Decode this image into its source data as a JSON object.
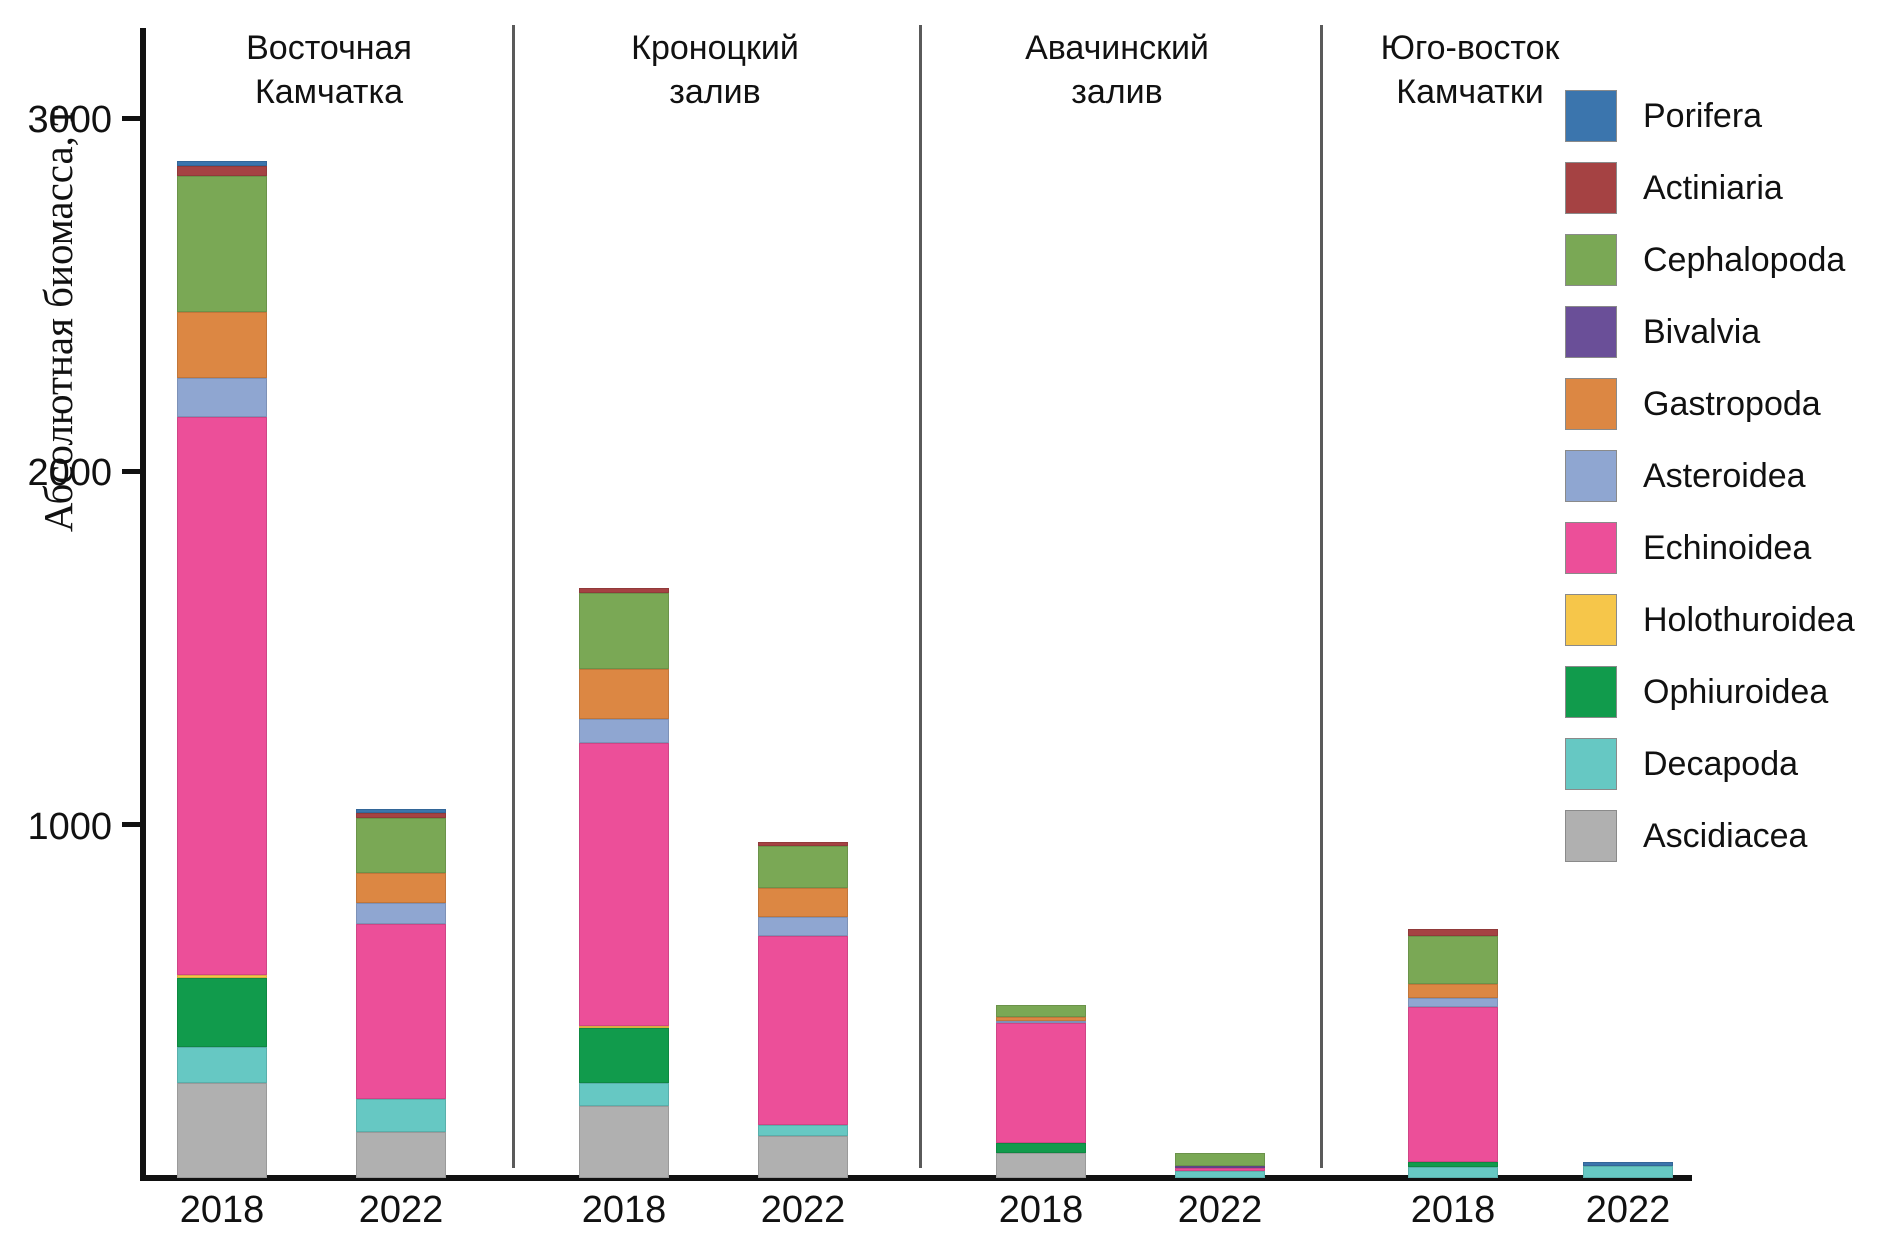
{
  "chart_data": {
    "type": "bar",
    "stacked": true,
    "title": "",
    "ylabel": "Абсолютная биомасса, т",
    "xlabel": "",
    "ylim": [
      0,
      3250
    ],
    "yticks": [
      "1000",
      "2000",
      "3000"
    ],
    "ytick_values": [
      1000,
      2000,
      3000
    ],
    "grid": false,
    "legend_position": "right",
    "legend": [
      {
        "name": "Porifera",
        "color": "#3b75ad"
      },
      {
        "name": "Actiniaria",
        "color": "#a54243"
      },
      {
        "name": "Cephalopoda",
        "color": "#7aa855"
      },
      {
        "name": "Bivalvia",
        "color": "#6a4f98"
      },
      {
        "name": "Gastropoda",
        "color": "#dc8743"
      },
      {
        "name": "Asteroidea",
        "color": "#8fa6d1"
      },
      {
        "name": "Echinoidea",
        "color": "#ec4f99"
      },
      {
        "name": "Holothuroidea",
        "color": "#f6c64a"
      },
      {
        "name": "Ophiuroidea",
        "color": "#119b4c"
      },
      {
        "name": "Decapoda",
        "color": "#66c8c3"
      },
      {
        "name": "Ascidiacea",
        "color": "#b0b0b0"
      }
    ],
    "stack_order_bottom_to_top": [
      "Ascidiacea",
      "Decapoda",
      "Ophiuroidea",
      "Holothuroidea",
      "Echinoidea",
      "Asteroidea",
      "Gastropoda",
      "Bivalvia",
      "Cephalopoda",
      "Actiniaria",
      "Porifera"
    ],
    "groups": [
      {
        "label": "Восточная\nКамчатка",
        "bars": [
          {
            "x_label": "2018",
            "total": 2880,
            "values": {
              "Ascidiacea": 270,
              "Decapoda": 100,
              "Ophiuroidea": 195,
              "Holothuroidea": 10,
              "Echinoidea": 1580,
              "Asteroidea": 110,
              "Gastropoda": 185,
              "Bivalvia": 0,
              "Cephalopoda": 385,
              "Actiniaria": 30,
              "Porifera": 15
            }
          },
          {
            "x_label": "2022",
            "total": 1045,
            "values": {
              "Ascidiacea": 130,
              "Decapoda": 95,
              "Ophiuroidea": 0,
              "Holothuroidea": 0,
              "Echinoidea": 495,
              "Asteroidea": 60,
              "Gastropoda": 85,
              "Bivalvia": 0,
              "Cephalopoda": 155,
              "Actiniaria": 15,
              "Porifera": 10
            }
          }
        ]
      },
      {
        "label": "Кроноцкий\nзалив",
        "bars": [
          {
            "x_label": "2018",
            "total": 1670,
            "values": {
              "Ascidiacea": 205,
              "Decapoda": 65,
              "Ophiuroidea": 155,
              "Holothuroidea": 5,
              "Echinoidea": 800,
              "Asteroidea": 70,
              "Gastropoda": 140,
              "Bivalvia": 0,
              "Cephalopoda": 215,
              "Actiniaria": 15,
              "Porifera": 0
            }
          },
          {
            "x_label": "2022",
            "total": 950,
            "values": {
              "Ascidiacea": 120,
              "Decapoda": 30,
              "Ophiuroidea": 0,
              "Holothuroidea": 0,
              "Echinoidea": 535,
              "Asteroidea": 55,
              "Gastropoda": 80,
              "Bivalvia": 0,
              "Cephalopoda": 120,
              "Actiniaria": 10,
              "Porifera": 0
            }
          }
        ]
      },
      {
        "label": "Авачинский\nзалив",
        "bars": [
          {
            "x_label": "2018",
            "total": 490,
            "values": {
              "Ascidiacea": 70,
              "Decapoda": 0,
              "Ophiuroidea": 30,
              "Holothuroidea": 0,
              "Echinoidea": 340,
              "Asteroidea": 5,
              "Gastropoda": 10,
              "Bivalvia": 0,
              "Cephalopoda": 35,
              "Actiniaria": 0,
              "Porifera": 0
            }
          },
          {
            "x_label": "2022",
            "total": 70,
            "values": {
              "Ascidiacea": 0,
              "Decapoda": 20,
              "Ophiuroidea": 0,
              "Holothuroidea": 0,
              "Echinoidea": 8,
              "Asteroidea": 0,
              "Gastropoda": 0,
              "Bivalvia": 7,
              "Cephalopoda": 35,
              "Actiniaria": 0,
              "Porifera": 0
            }
          }
        ]
      },
      {
        "label": "Юго-восток\nКамчатки",
        "bars": [
          {
            "x_label": "2018",
            "total": 705,
            "values": {
              "Ascidiacea": 0,
              "Decapoda": 30,
              "Ophiuroidea": 15,
              "Holothuroidea": 0,
              "Echinoidea": 440,
              "Asteroidea": 25,
              "Gastropoda": 40,
              "Bivalvia": 0,
              "Cephalopoda": 135,
              "Actiniaria": 20,
              "Porifera": 0
            }
          },
          {
            "x_label": "2022",
            "total": 45,
            "values": {
              "Ascidiacea": 0,
              "Decapoda": 35,
              "Ophiuroidea": 0,
              "Holothuroidea": 0,
              "Echinoidea": 0,
              "Asteroidea": 0,
              "Gastropoda": 0,
              "Bivalvia": 0,
              "Cephalopoda": 0,
              "Actiniaria": 0,
              "Porifera": 10
            }
          }
        ]
      }
    ]
  }
}
